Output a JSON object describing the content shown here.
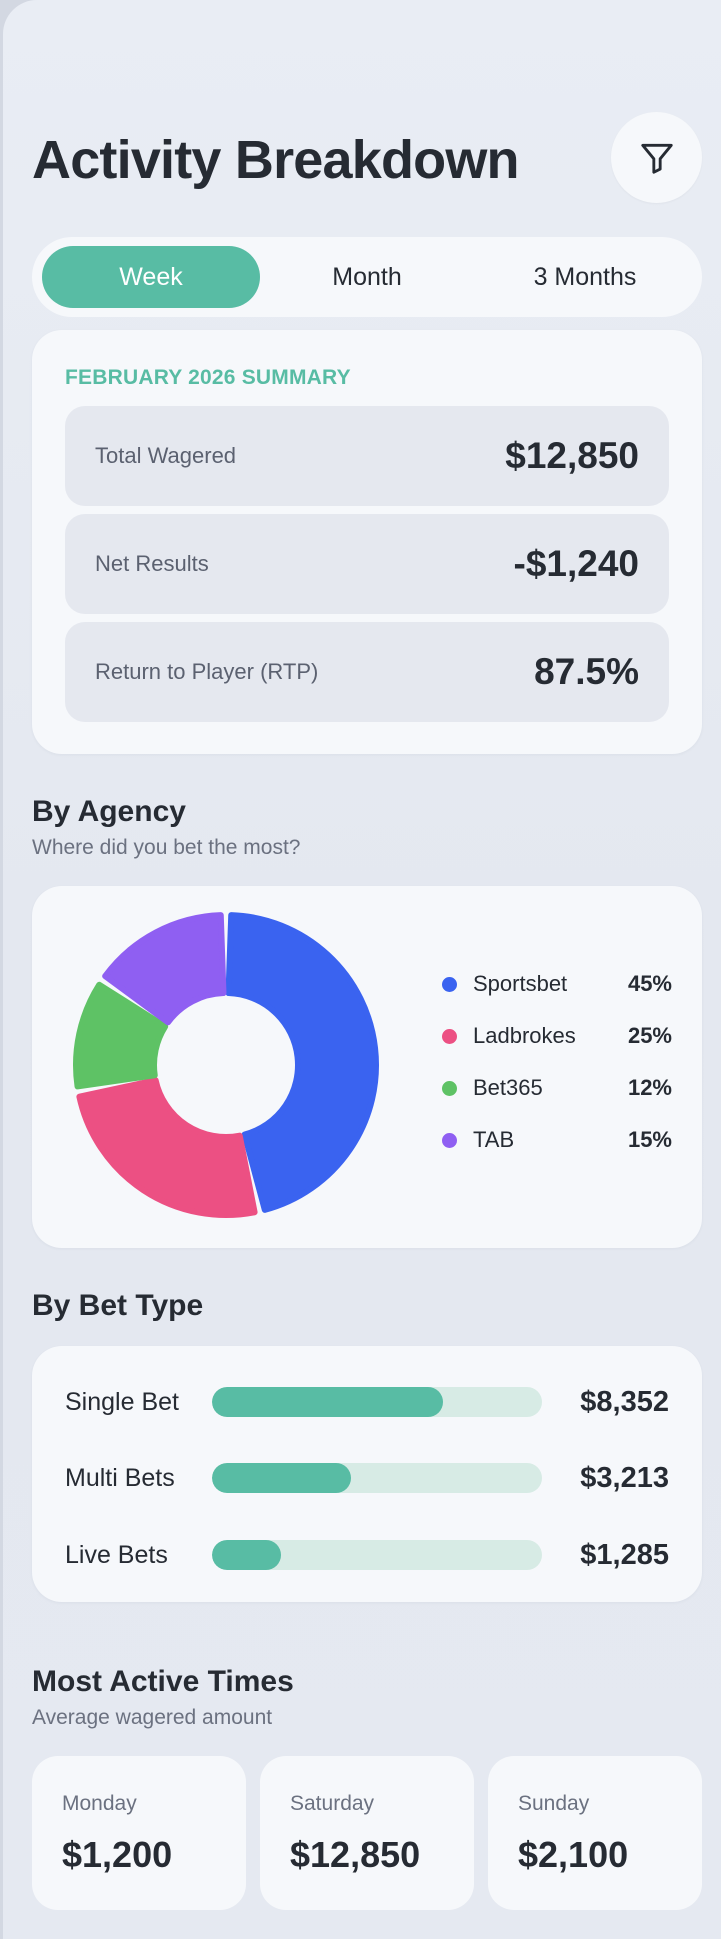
{
  "header": {
    "title": "Activity Breakdown",
    "filter_icon": "filter-icon"
  },
  "period_tabs": [
    {
      "label": "Week",
      "active": true
    },
    {
      "label": "Month",
      "active": false
    },
    {
      "label": "3 Months",
      "active": false
    }
  ],
  "summary": {
    "heading": "FEBRUARY 2026 SUMMARY",
    "stats": [
      {
        "label": "Total Wagered",
        "value": "$12,850"
      },
      {
        "label": "Net Results",
        "value": "-$1,240"
      },
      {
        "label": "Return to Player (RTP)",
        "value": "87.5%"
      }
    ]
  },
  "by_agency": {
    "title": "By Agency",
    "subtitle": "Where did you bet the most?"
  },
  "by_bet_type": {
    "title": "By Bet Type",
    "items": [
      {
        "label": "Single Bet",
        "value": "$8,352",
        "fill": 0.7
      },
      {
        "label": "Multi Bets",
        "value": "$3,213",
        "fill": 0.42
      },
      {
        "label": "Live Bets",
        "value": "$1,285",
        "fill": 0.21
      }
    ]
  },
  "most_active": {
    "title": "Most Active Times",
    "subtitle": "Average wagered amount",
    "days": [
      {
        "day": "Monday",
        "value": "$1,200"
      },
      {
        "day": "Saturday",
        "value": "$12,850"
      },
      {
        "day": "Sunday",
        "value": "$2,100"
      }
    ]
  },
  "chart_data": {
    "type": "pie",
    "categories": [
      "Sportsbet",
      "Ladbrokes",
      "Bet365",
      "TAB"
    ],
    "values": [
      45,
      25,
      12,
      15
    ],
    "labels": [
      "45%",
      "25%",
      "12%",
      "15%"
    ],
    "colors": [
      "#3a63f0",
      "#ec5083",
      "#5ec265",
      "#8f5ff2"
    ],
    "title": "",
    "legend": "right",
    "donut": true
  }
}
